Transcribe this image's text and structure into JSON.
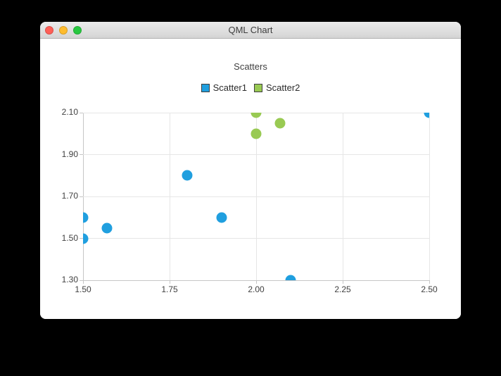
{
  "window": {
    "title": "QML Chart",
    "controls": {
      "close": "close",
      "minimize": "minimize",
      "zoom": "zoom"
    }
  },
  "colors": {
    "traffic_red": "#ff5f57",
    "traffic_yellow": "#febc2e",
    "traffic_green": "#28c840",
    "series_blue": "#209fdf",
    "series_green": "#99ca53",
    "gridline": "#e6e6e6",
    "axis_line": "#c6c6c6",
    "axis_label": "#404040"
  },
  "chart_data": {
    "type": "scatter",
    "title": "Scatters",
    "xlabel": "",
    "ylabel": "",
    "xlim": [
      1.5,
      2.5
    ],
    "ylim": [
      1.3,
      2.1
    ],
    "x_ticks": [
      "1.50",
      "1.75",
      "2.00",
      "2.25",
      "2.50"
    ],
    "y_ticks": [
      "1.30",
      "1.50",
      "1.70",
      "1.90",
      "2.10"
    ],
    "grid": true,
    "legend_position": "top",
    "series": [
      {
        "name": "Scatter1",
        "color": "#209fdf",
        "points": [
          {
            "x": 1.5,
            "y": 1.5
          },
          {
            "x": 1.5,
            "y": 1.6
          },
          {
            "x": 1.57,
            "y": 1.55
          },
          {
            "x": 1.8,
            "y": 1.8
          },
          {
            "x": 1.9,
            "y": 1.6
          },
          {
            "x": 2.1,
            "y": 1.3
          },
          {
            "x": 2.5,
            "y": 2.1
          }
        ]
      },
      {
        "name": "Scatter2",
        "color": "#99ca53",
        "points": [
          {
            "x": 2.0,
            "y": 2.0
          },
          {
            "x": 2.0,
            "y": 2.1
          },
          {
            "x": 2.07,
            "y": 2.05
          }
        ]
      }
    ]
  }
}
